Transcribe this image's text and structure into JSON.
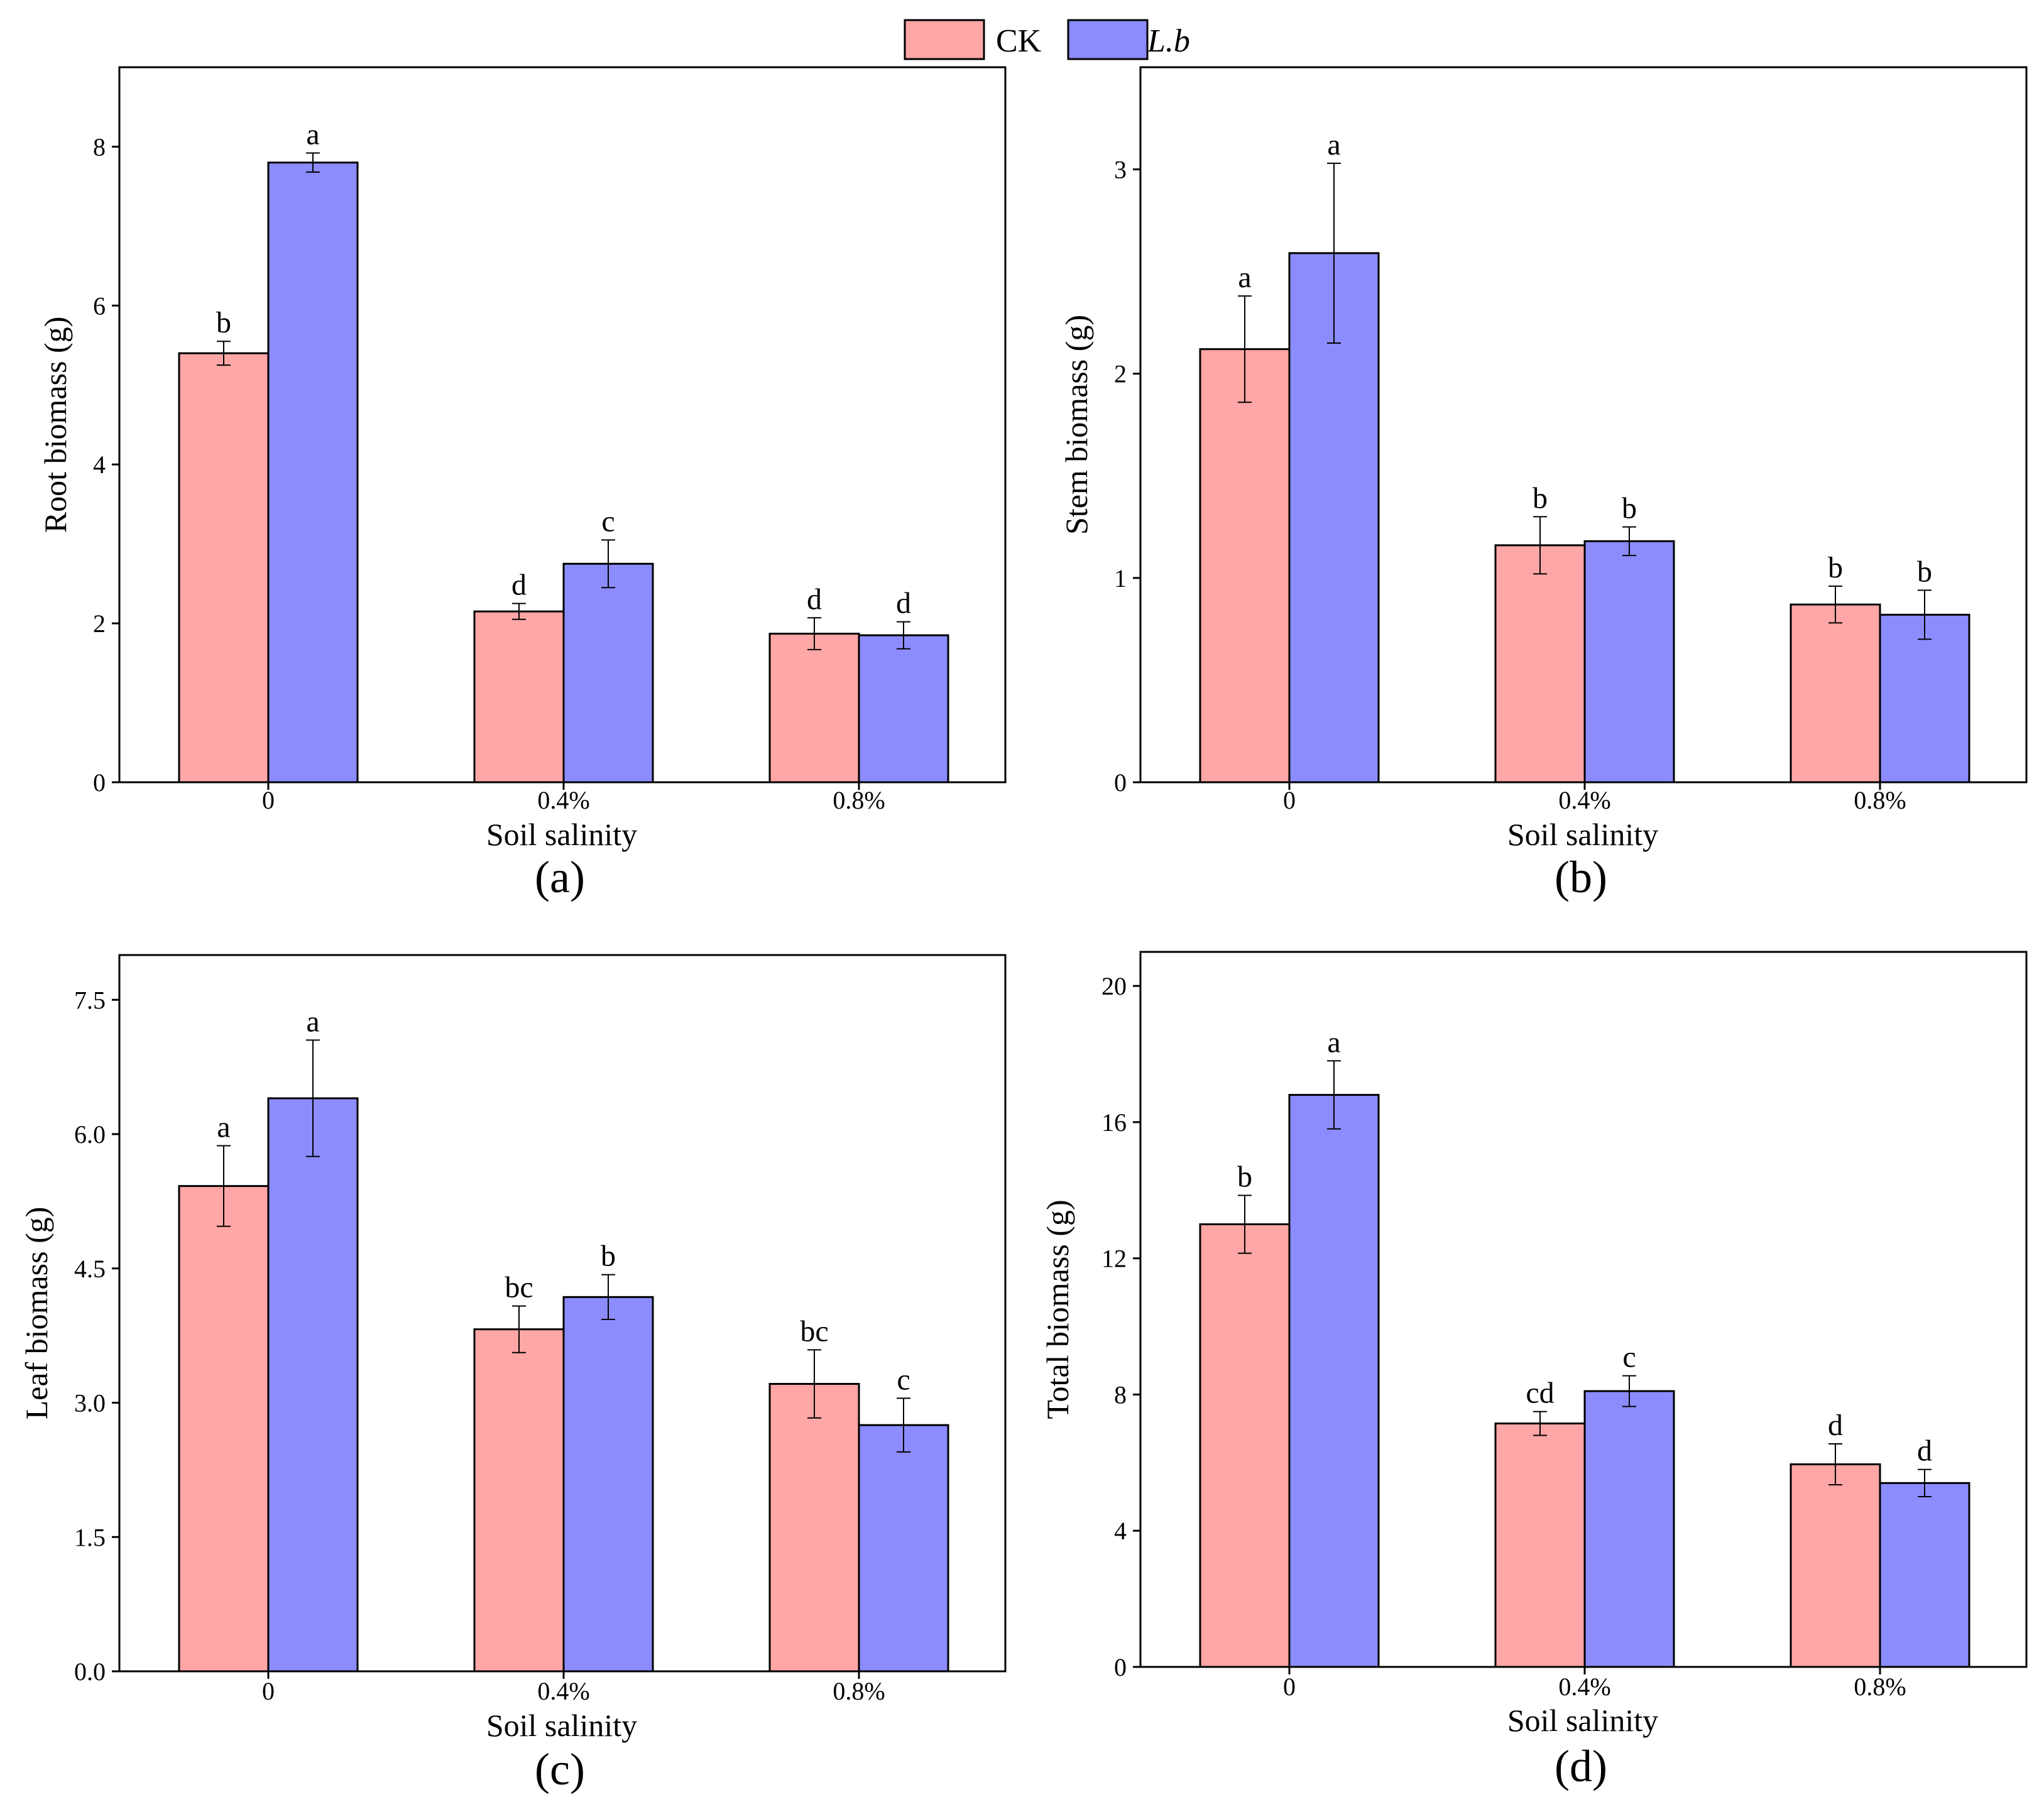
{
  "legend": {
    "items": [
      {
        "name": "CK",
        "color": "#FFA6A6",
        "italic": false
      },
      {
        "name": "L.b",
        "color": "#8C8CFF",
        "italic": true
      }
    ]
  },
  "chart_data": [
    {
      "type": "bar",
      "panel": "(a)",
      "xlabel": "Soil salinity",
      "ylabel": "Root biomass (g)",
      "categories": [
        "0",
        "0.4%",
        "0.8%"
      ],
      "ylim": [
        0,
        9
      ],
      "yticks": [
        0,
        2,
        4,
        6,
        8
      ],
      "ytick_labels": [
        "0",
        "2",
        "4",
        "6",
        "8"
      ],
      "series": [
        {
          "name": "CK",
          "values": [
            5.4,
            2.15,
            1.87
          ],
          "errors": [
            0.15,
            0.1,
            0.2
          ],
          "labels": [
            "b",
            "d",
            "d"
          ]
        },
        {
          "name": "L.b",
          "values": [
            7.8,
            2.75,
            1.85
          ],
          "errors": [
            0.12,
            0.3,
            0.17
          ],
          "labels": [
            "a",
            "c",
            "d"
          ]
        }
      ]
    },
    {
      "type": "bar",
      "panel": "(b)",
      "xlabel": "Soil salinity",
      "ylabel": "Stem biomass (g)",
      "categories": [
        "0",
        "0.4%",
        "0.8%"
      ],
      "ylim": [
        0,
        3.5
      ],
      "yticks": [
        0,
        1,
        2,
        3
      ],
      "ytick_labels": [
        "0",
        "1",
        "2",
        "3"
      ],
      "series": [
        {
          "name": "CK",
          "values": [
            2.12,
            1.16,
            0.87
          ],
          "errors": [
            0.26,
            0.14,
            0.09
          ],
          "labels": [
            "a",
            "b",
            "b"
          ]
        },
        {
          "name": "L.b",
          "values": [
            2.59,
            1.18,
            0.82
          ],
          "errors": [
            0.44,
            0.07,
            0.12
          ],
          "labels": [
            "a",
            "b",
            "b"
          ]
        }
      ]
    },
    {
      "type": "bar",
      "panel": "(c)",
      "xlabel": "Soil salinity",
      "ylabel": "Leaf biomass (g)",
      "categories": [
        "0",
        "0.4%",
        "0.8%"
      ],
      "ylim": [
        0,
        8
      ],
      "yticks": [
        0,
        1.5,
        3,
        4.5,
        6,
        7.5
      ],
      "ytick_labels": [
        "0.0",
        "1.5",
        "3.0",
        "4.5",
        "6.0",
        "7.5"
      ],
      "series": [
        {
          "name": "CK",
          "values": [
            5.42,
            3.82,
            3.21
          ],
          "errors": [
            0.45,
            0.26,
            0.38
          ],
          "labels": [
            "a",
            "bc",
            "bc"
          ]
        },
        {
          "name": "L.b",
          "values": [
            6.4,
            4.18,
            2.75
          ],
          "errors": [
            0.65,
            0.25,
            0.3
          ],
          "labels": [
            "a",
            "b",
            "c"
          ]
        }
      ]
    },
    {
      "type": "bar",
      "panel": "(d)",
      "xlabel": "Soil salinity",
      "ylabel": "Total biomass (g)",
      "categories": [
        "0",
        "0.4%",
        "0.8%"
      ],
      "ylim": [
        0,
        21
      ],
      "yticks": [
        0,
        4,
        8,
        12,
        16,
        20
      ],
      "ytick_labels": [
        "0",
        "4",
        "8",
        "12",
        "16",
        "20"
      ],
      "series": [
        {
          "name": "CK",
          "values": [
            13.0,
            7.15,
            5.95
          ],
          "errors": [
            0.85,
            0.35,
            0.6
          ],
          "labels": [
            "b",
            "cd",
            "d"
          ]
        },
        {
          "name": "L.b",
          "values": [
            16.8,
            8.1,
            5.4
          ],
          "errors": [
            1.0,
            0.45,
            0.4
          ],
          "labels": [
            "a",
            "c",
            "d"
          ]
        }
      ]
    }
  ]
}
